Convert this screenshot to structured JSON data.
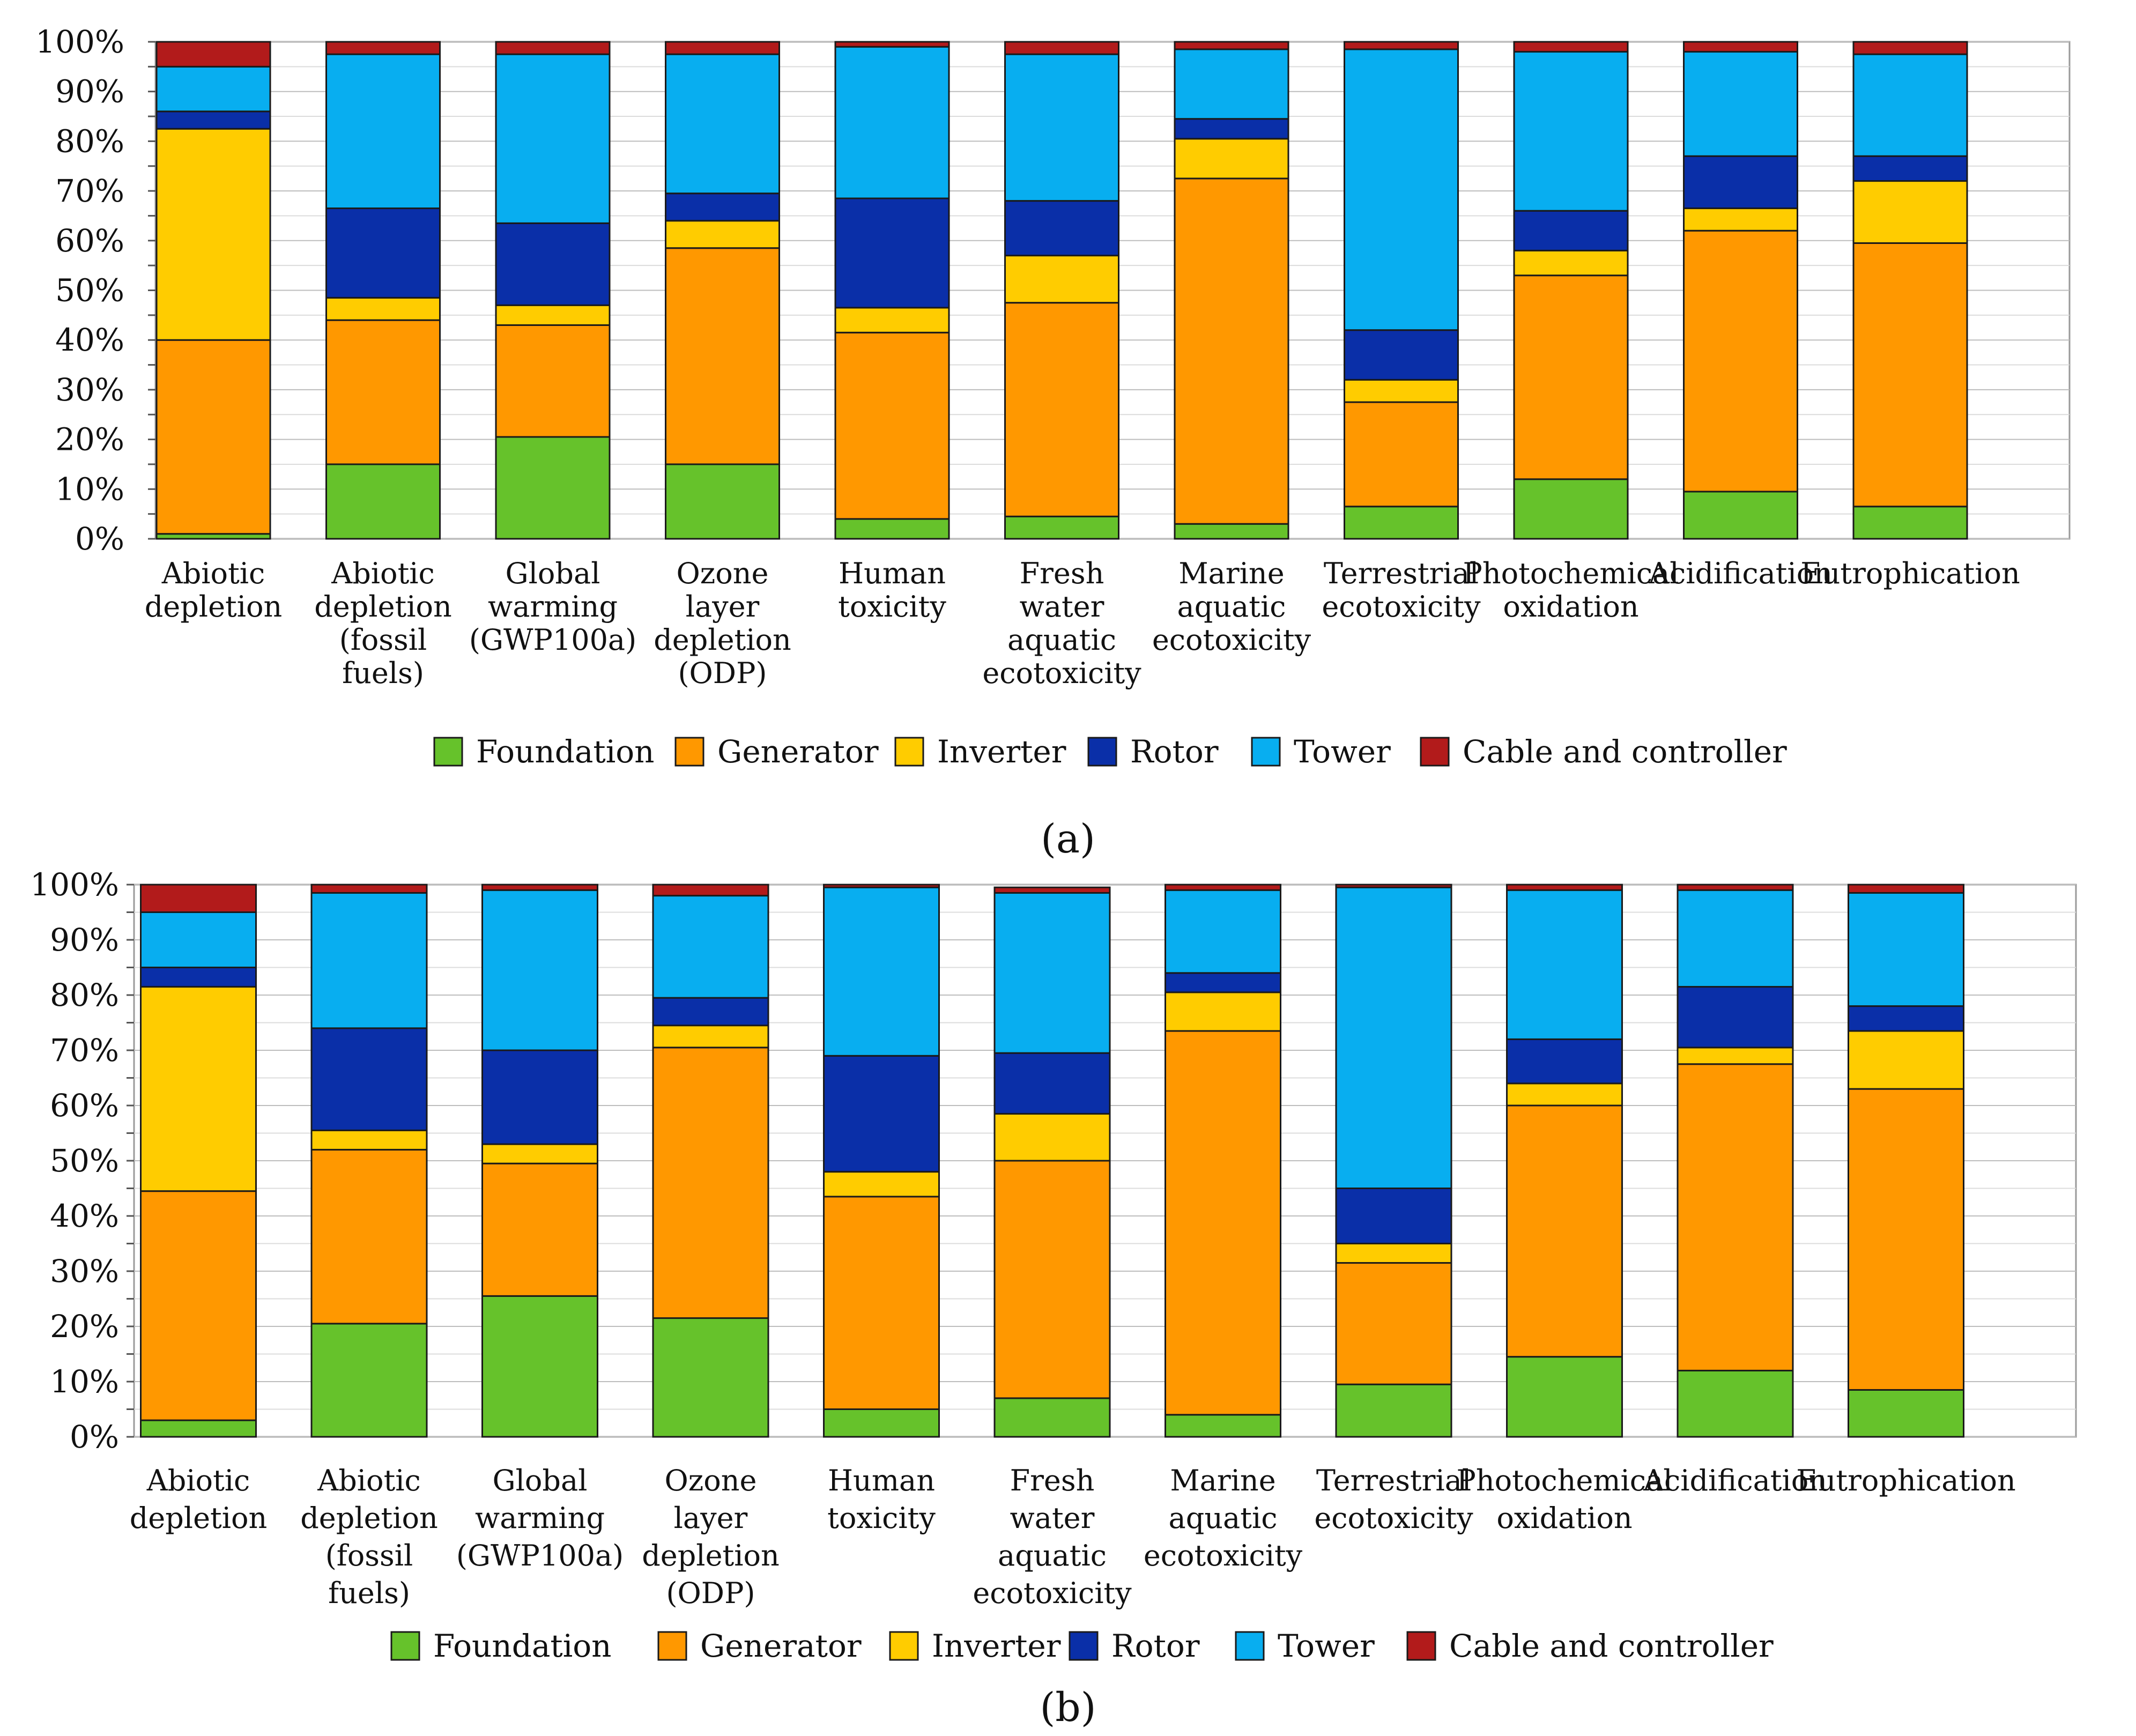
{
  "chart_data": [
    {
      "type": "bar",
      "stacked": true,
      "panel_label": "(a)",
      "ylim": [
        0,
        100
      ],
      "yticks": [
        "0%",
        "10%",
        "20%",
        "30%",
        "40%",
        "50%",
        "60%",
        "70%",
        "80%",
        "90%",
        "100%"
      ],
      "categories": [
        [
          "Abiotic",
          "depletion"
        ],
        [
          "Abiotic",
          "depletion",
          "(fossil",
          "fuels)"
        ],
        [
          "Global",
          "warming",
          "(GWP100a)"
        ],
        [
          "Ozone",
          "layer",
          "depletion",
          "(ODP)"
        ],
        [
          "Human",
          "toxicity"
        ],
        [
          "Fresh",
          "water",
          "aquatic",
          "ecotoxicity"
        ],
        [
          "Marine",
          "aquatic",
          "ecotoxicity"
        ],
        [
          "Terrestrial",
          "ecotoxicity"
        ],
        [
          "Photochemical",
          "oxidation"
        ],
        [
          "Acidification"
        ],
        [
          "Eutrophication"
        ]
      ],
      "series": [
        {
          "name": "Foundation",
          "color": "#66c22b",
          "values": [
            1,
            15,
            20.5,
            15,
            4,
            4.5,
            3,
            6.5,
            12,
            9.5,
            6.5
          ]
        },
        {
          "name": "Generator",
          "color": "#ff9800",
          "values": [
            39,
            29,
            22.5,
            43.5,
            37.5,
            43,
            69.5,
            21,
            41,
            52.5,
            53
          ]
        },
        {
          "name": "Inverter",
          "color": "#ffcc00",
          "values": [
            42.5,
            4.5,
            4,
            5.5,
            5,
            9.5,
            8,
            4.5,
            5,
            4.5,
            12.5
          ]
        },
        {
          "name": "Rotor",
          "color": "#0a2fa8",
          "values": [
            3.5,
            18,
            16.5,
            5.5,
            22,
            11,
            4,
            10,
            8,
            10.5,
            5
          ]
        },
        {
          "name": "Tower",
          "color": "#08aef0",
          "values": [
            9,
            31,
            34,
            28,
            30.5,
            29.5,
            14,
            56.5,
            32,
            21,
            20.5
          ]
        },
        {
          "name": "Cable and controller",
          "color": "#b21b1b",
          "values": [
            5,
            2.5,
            2.5,
            2.5,
            1,
            2.5,
            1.5,
            1.5,
            2,
            2,
            2.5
          ]
        }
      ],
      "legend_position": "bottom"
    },
    {
      "type": "bar",
      "stacked": true,
      "panel_label": "(b)",
      "ylim": [
        0,
        100
      ],
      "yticks": [
        "0%",
        "10%",
        "20%",
        "30%",
        "40%",
        "50%",
        "60%",
        "70%",
        "80%",
        "90%",
        "100%"
      ],
      "categories": [
        [
          "Abiotic",
          "depletion"
        ],
        [
          "Abiotic",
          "depletion",
          "(fossil",
          "fuels)"
        ],
        [
          "Global",
          "warming",
          "(GWP100a)"
        ],
        [
          "Ozone",
          "layer",
          "depletion",
          "(ODP)"
        ],
        [
          "Human",
          "toxicity"
        ],
        [
          "Fresh",
          "water",
          "aquatic",
          "ecotoxicity"
        ],
        [
          "Marine",
          "aquatic",
          "ecotoxicity"
        ],
        [
          "Terrestrial",
          "ecotoxicity"
        ],
        [
          "Photochemical",
          "oxidation"
        ],
        [
          "Acidification"
        ],
        [
          "Eutrophication"
        ]
      ],
      "series": [
        {
          "name": "Foundation",
          "color": "#66c22b",
          "values": [
            3,
            20.5,
            25.5,
            21.5,
            5,
            7,
            4,
            9.5,
            14.5,
            12,
            8.5
          ]
        },
        {
          "name": "Generator",
          "color": "#ff9800",
          "values": [
            41.5,
            31.5,
            24,
            49,
            38.5,
            43,
            69.5,
            22,
            45.5,
            55.5,
            54.5
          ]
        },
        {
          "name": "Inverter",
          "color": "#ffcc00",
          "values": [
            37,
            3.5,
            3.5,
            4,
            4.5,
            8.5,
            7,
            3.5,
            4,
            3,
            10.5
          ]
        },
        {
          "name": "Rotor",
          "color": "#0a2fa8",
          "values": [
            3.5,
            18.5,
            17,
            5,
            21,
            11,
            3.5,
            10,
            8,
            11,
            4.5
          ]
        },
        {
          "name": "Tower",
          "color": "#08aef0",
          "values": [
            10,
            24.5,
            29,
            18.5,
            30.5,
            29,
            15,
            54.5,
            27,
            17.5,
            20.5
          ]
        },
        {
          "name": "Cable and controller",
          "color": "#b21b1b",
          "values": [
            5,
            1.5,
            1,
            2,
            0.5,
            1,
            1,
            0.5,
            1,
            1,
            1.5
          ]
        }
      ],
      "legend_position": "bottom"
    }
  ]
}
